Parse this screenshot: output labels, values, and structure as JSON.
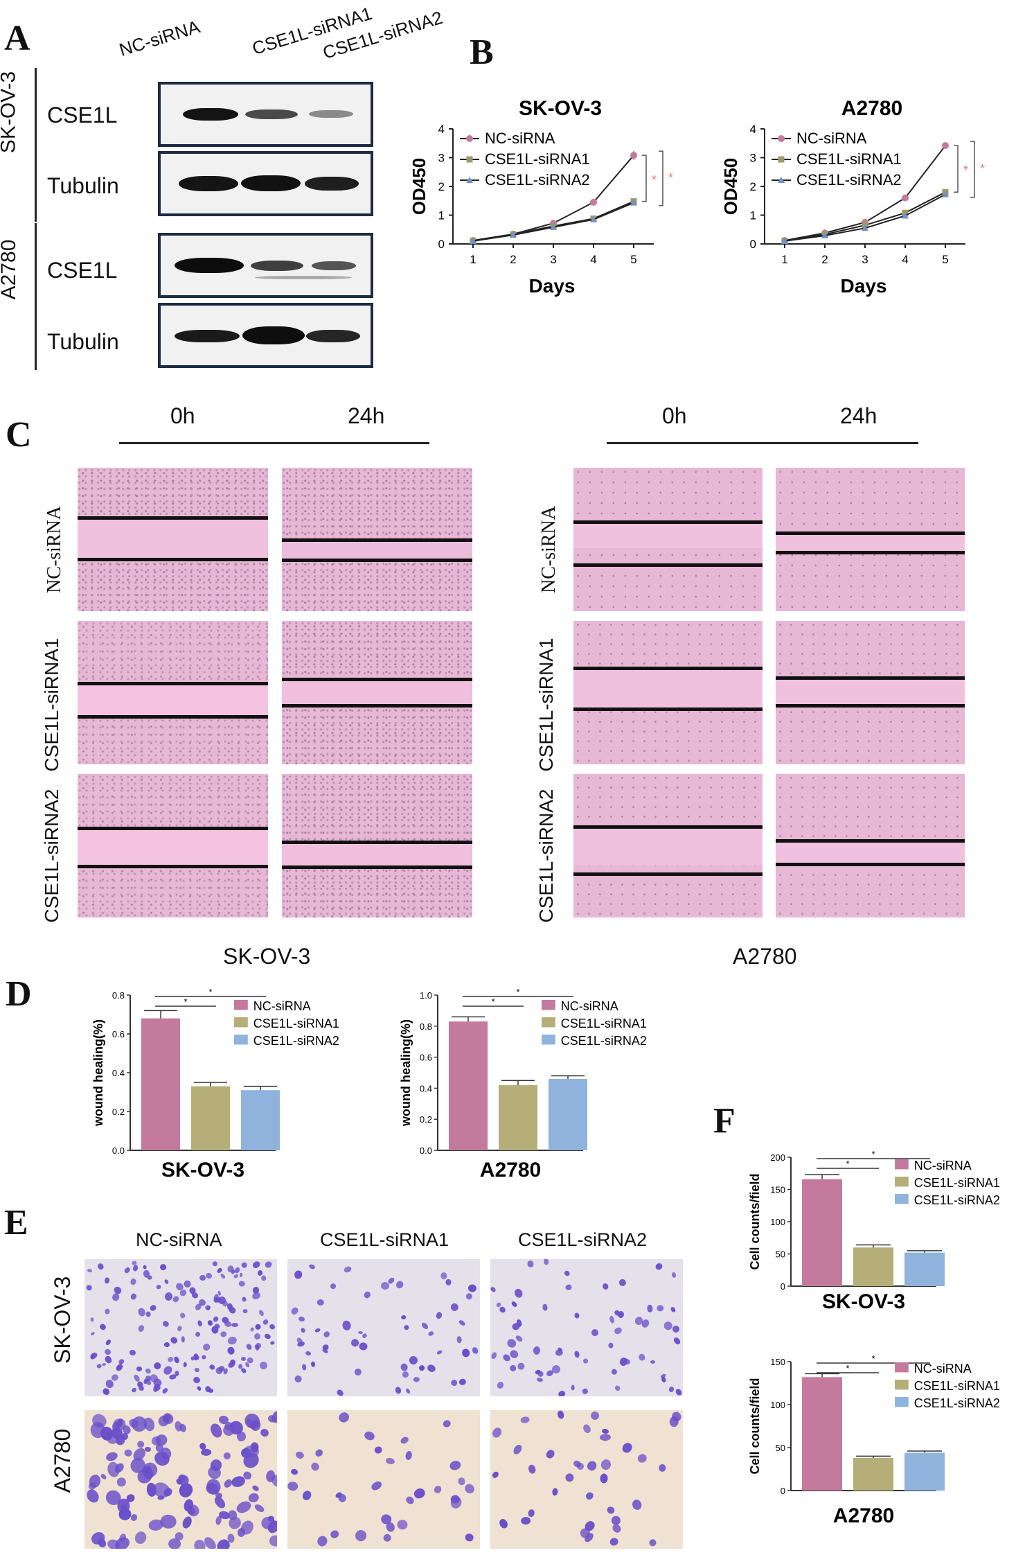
{
  "panels": {
    "A": {
      "label": "A",
      "lane_labels": [
        "NC-siRNA",
        "CSE1L-siRNA1",
        "CSE1L-siRNA2"
      ],
      "cell_lines": [
        "SK-OV-3",
        "A2780"
      ],
      "blot_rows": [
        "CSE1L",
        "Tubulin",
        "CSE1L",
        "Tubulin"
      ]
    },
    "B": {
      "label": "B",
      "days_label": "Days",
      "ylabel": "OD450",
      "sig_mark": "*"
    },
    "C": {
      "label": "C",
      "time_labels": [
        "0h",
        "24h",
        "0h",
        "24h"
      ],
      "row_labels": [
        "NC-siRNA",
        "CSE1L-siRNA1",
        "CSE1L-siRNA2",
        "NC-siRNA",
        "CSE1L-siRNA1",
        "CSE1L-siRNA2"
      ],
      "captions": [
        "SK-OV-3",
        "A2780"
      ]
    },
    "D": {
      "label": "D"
    },
    "E": {
      "label": "E",
      "col_labels": [
        "NC-siRNA",
        "CSE1L-siRNA1",
        "CSE1L-siRNA2"
      ],
      "row_labels": [
        "SK-OV-3",
        "A2780"
      ]
    },
    "F": {
      "label": "F"
    }
  },
  "colors": {
    "nc": "#c47a9d",
    "si1": "#b5ae78",
    "si2": "#8fb3dc",
    "nc_line": "#c47a9d",
    "si1_line": "#9c9a6a",
    "si2_line": "#6f92c8",
    "blot_border": "#1d2b45",
    "scratch_pink": "#e7b7d6",
    "crystal_violet": "#6a4fc9",
    "sig_red": "#e07a7a"
  },
  "chart_data": [
    {
      "id": "B-SKOV3",
      "type": "line",
      "title": "SK-OV-3",
      "xlabel": "Days",
      "ylabel": "OD450",
      "x": [
        1,
        2,
        3,
        4,
        5
      ],
      "xlim": [
        0.5,
        5.5
      ],
      "ylim": [
        0,
        4
      ],
      "yticks": [
        0,
        1,
        2,
        3,
        4
      ],
      "series": [
        {
          "name": "NC-siRNA",
          "values": [
            0.12,
            0.34,
            0.72,
            1.45,
            3.08
          ],
          "err": [
            0.02,
            0.02,
            0.03,
            0.04,
            0.15
          ]
        },
        {
          "name": "CSE1L-siRNA1",
          "values": [
            0.11,
            0.33,
            0.62,
            0.88,
            1.48
          ],
          "err": [
            0.02,
            0.02,
            0.03,
            0.03,
            0.04
          ]
        },
        {
          "name": "CSE1L-siRNA2",
          "values": [
            0.1,
            0.31,
            0.58,
            0.85,
            1.43
          ],
          "err": [
            0.02,
            0.02,
            0.03,
            0.03,
            0.04
          ]
        }
      ],
      "legend": "top-left",
      "annotations": [
        "*",
        "*"
      ]
    },
    {
      "id": "B-A2780",
      "type": "line",
      "title": "A2780",
      "xlabel": "Days",
      "ylabel": "OD450",
      "x": [
        1,
        2,
        3,
        4,
        5
      ],
      "xlim": [
        0.5,
        5.5
      ],
      "ylim": [
        0,
        4
      ],
      "yticks": [
        0,
        1,
        2,
        3,
        4
      ],
      "series": [
        {
          "name": "NC-siRNA",
          "values": [
            0.12,
            0.38,
            0.75,
            1.6,
            3.42
          ],
          "err": [
            0.02,
            0.02,
            0.03,
            0.04,
            0.08
          ]
        },
        {
          "name": "CSE1L-siRNA1",
          "values": [
            0.11,
            0.33,
            0.65,
            1.08,
            1.8
          ],
          "err": [
            0.02,
            0.02,
            0.03,
            0.03,
            0.05
          ]
        },
        {
          "name": "CSE1L-siRNA2",
          "values": [
            0.1,
            0.29,
            0.55,
            0.98,
            1.72
          ],
          "err": [
            0.02,
            0.02,
            0.03,
            0.03,
            0.05
          ]
        }
      ],
      "legend": "top-left",
      "annotations": [
        "*",
        "*"
      ]
    },
    {
      "id": "D-SKOV3",
      "type": "bar",
      "title": "SK-OV-3",
      "ylabel": "wound healing(%)",
      "categories": [
        "NC-siRNA",
        "CSE1L-siRNA1",
        "CSE1L-siRNA2"
      ],
      "values": [
        0.68,
        0.33,
        0.31
      ],
      "err": [
        0.04,
        0.02,
        0.02
      ],
      "ylim": [
        0,
        0.8
      ],
      "yticks": [
        0.0,
        0.2,
        0.4,
        0.6,
        0.8
      ],
      "legend": "top-right",
      "annotations": [
        "*",
        "*"
      ]
    },
    {
      "id": "D-A2780",
      "type": "bar",
      "title": "A2780",
      "ylabel": "wound healing(%)",
      "categories": [
        "NC-siRNA",
        "CSE1L-siRNA1",
        "CSE1L-siRNA2"
      ],
      "values": [
        0.83,
        0.42,
        0.46
      ],
      "err": [
        0.03,
        0.03,
        0.02
      ],
      "ylim": [
        0,
        1.0
      ],
      "yticks": [
        0.0,
        0.2,
        0.4,
        0.6,
        0.8,
        1.0
      ],
      "legend": "top-right",
      "annotations": [
        "*",
        "*"
      ]
    },
    {
      "id": "F-SKOV3",
      "type": "bar",
      "title": "SK-OV-3",
      "ylabel": "Cell counts/field",
      "categories": [
        "NC-siRNA",
        "CSE1L-siRNA1",
        "CSE1L-siRNA2"
      ],
      "values": [
        166,
        60,
        52
      ],
      "err": [
        7,
        4,
        3
      ],
      "ylim": [
        0,
        200
      ],
      "yticks": [
        0,
        50,
        100,
        150,
        200
      ],
      "legend": "top-right",
      "annotations": [
        "*",
        "*"
      ]
    },
    {
      "id": "F-A2780",
      "type": "bar",
      "title": "A2780",
      "ylabel": "Cell counts/field",
      "categories": [
        "NC-siRNA",
        "CSE1L-siRNA1",
        "CSE1L-siRNA2"
      ],
      "values": [
        132,
        38,
        44
      ],
      "err": [
        4,
        2,
        2
      ],
      "ylim": [
        0,
        150
      ],
      "yticks": [
        0,
        50,
        100,
        150
      ],
      "legend": "top-right",
      "annotations": [
        "*",
        "*"
      ]
    }
  ]
}
